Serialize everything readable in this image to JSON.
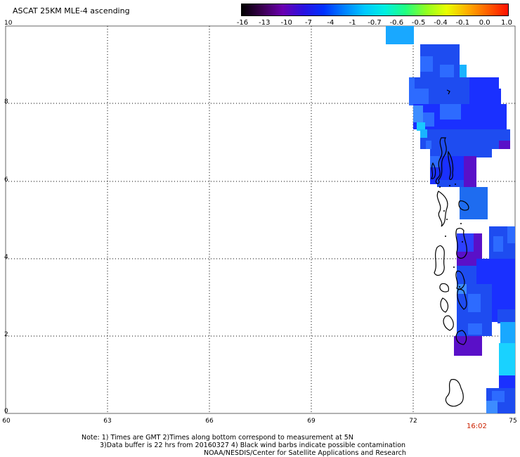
{
  "title": "ASCAT 25KM MLE-4 ascending",
  "colorbar": {
    "labels": [
      "-16",
      "-13",
      "-10",
      "-7",
      "-4",
      "-1",
      "-0.7",
      "-0.6",
      "-0.5",
      "-0.4",
      "-0.1",
      "0.0",
      "1.0"
    ],
    "colors": [
      "#000000",
      "#3a0050",
      "#6a00b0",
      "#2a10e0",
      "#0030ff",
      "#0080ff",
      "#00c8ff",
      "#00f0e0",
      "#20ff80",
      "#90ff20",
      "#e8ff00",
      "#ffb000",
      "#ff6000",
      "#ff1000"
    ]
  },
  "axes": {
    "y_labels": [
      "10",
      "8",
      "6",
      "4",
      "2",
      "0"
    ],
    "x_labels": [
      "60",
      "63",
      "66",
      "69",
      "72",
      "75"
    ]
  },
  "time_label": "16:02",
  "notes": {
    "line1": "Note: 1) Times are GMT 2)Times along bottom correspond to measurement at 5N",
    "line2": "3)Data buffer is 22 hrs from 20160327 4) Black wind barbs indicate possible contamination",
    "line3": "NOAA/NESDIS/Center for Satellite Applications and Research"
  },
  "palette": {
    "blue": "#1e4cf0",
    "blue_dark": "#1a30ff",
    "blue_mid": "#2d6bff",
    "blue_light": "#3d8cff",
    "cyan": "#19b4ff",
    "cyan_light": "#19d2ff",
    "purple": "#5a10c8"
  }
}
